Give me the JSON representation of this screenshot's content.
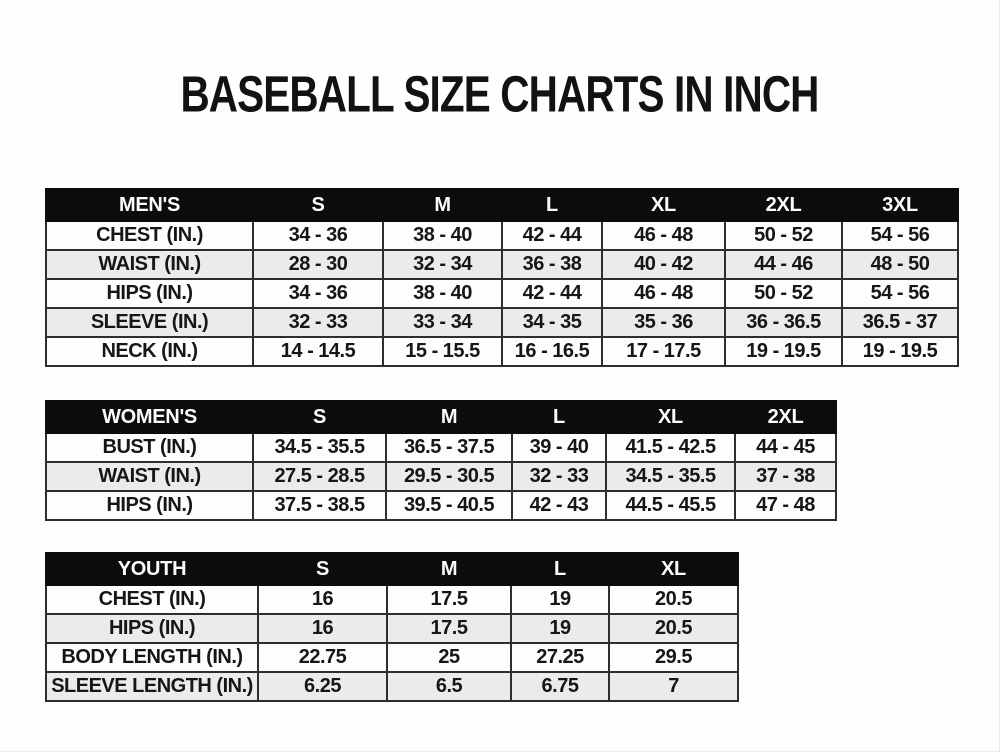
{
  "page": {
    "title": "BASEBALL SIZE CHARTS IN INCH",
    "unit": "inch"
  },
  "colors": {
    "page_background": "#fefefe",
    "table_header_bg": "#0c0c0c",
    "table_header_text": "#fcfcfc",
    "row_bg": "#fdfdfd",
    "row_alt_bg": "#ebebeb",
    "border": "#2e2e2e",
    "text": "#161616"
  },
  "tables": [
    {
      "name": "mens",
      "header": [
        "MEN'S",
        "S",
        "M",
        "L",
        "XL",
        "2XL",
        "3XL"
      ],
      "rows": [
        {
          "label": "CHEST (IN.)",
          "values": [
            "34 - 36",
            "38 - 40",
            "42 - 44",
            "46 - 48",
            "50 - 52",
            "54 - 56"
          ]
        },
        {
          "label": "WAIST (IN.)",
          "values": [
            "28 - 30",
            "32 - 34",
            "36 - 38",
            "40 - 42",
            "44 - 46",
            "48 - 50"
          ]
        },
        {
          "label": "HIPS (IN.)",
          "values": [
            "34 - 36",
            "38 - 40",
            "42 - 44",
            "46 - 48",
            "50 - 52",
            "54 - 56"
          ]
        },
        {
          "label": "SLEEVE (IN.)",
          "values": [
            "32 - 33",
            "33 - 34",
            "34 - 35",
            "35 - 36",
            "36 - 36.5",
            "36.5 - 37"
          ]
        },
        {
          "label": "NECK (IN.)",
          "values": [
            "14 - 14.5",
            "15 - 15.5",
            "16 - 16.5",
            "17 - 17.5",
            "19 - 19.5",
            "19 - 19.5"
          ]
        }
      ]
    },
    {
      "name": "womens",
      "header": [
        "WOMEN'S",
        "S",
        "M",
        "L",
        "XL",
        "2XL"
      ],
      "rows": [
        {
          "label": "BUST (IN.)",
          "values": [
            "34.5 - 35.5",
            "36.5 - 37.5",
            "39 - 40",
            "41.5 - 42.5",
            "44 - 45"
          ]
        },
        {
          "label": "WAIST (IN.)",
          "values": [
            "27.5 - 28.5",
            "29.5 - 30.5",
            "32 - 33",
            "34.5 - 35.5",
            "37 - 38"
          ]
        },
        {
          "label": "HIPS (IN.)",
          "values": [
            "37.5 - 38.5",
            "39.5 - 40.5",
            "42 - 43",
            "44.5 - 45.5",
            "47 - 48"
          ]
        }
      ]
    },
    {
      "name": "youth",
      "header": [
        "YOUTH",
        "S",
        "M",
        "L",
        "XL"
      ],
      "rows": [
        {
          "label": "CHEST (IN.)",
          "values": [
            "16",
            "17.5",
            "19",
            "20.5"
          ]
        },
        {
          "label": "HIPS (IN.)",
          "values": [
            "16",
            "17.5",
            "19",
            "20.5"
          ]
        },
        {
          "label": "BODY LENGTH (IN.)",
          "values": [
            "22.75",
            "25",
            "27.25",
            "29.5"
          ]
        },
        {
          "label": "SLEEVE LENGTH (IN.)",
          "values": [
            "6.25",
            "6.5",
            "6.75",
            "7"
          ]
        }
      ]
    }
  ]
}
